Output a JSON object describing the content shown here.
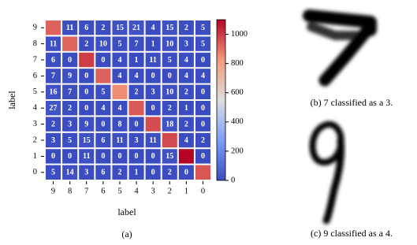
{
  "chart_data": {
    "type": "heatmap",
    "x_label": "label",
    "y_label": "label",
    "x_categories": [
      "9",
      "8",
      "7",
      "6",
      "5",
      "4",
      "3",
      "2",
      "1",
      "0"
    ],
    "y_categories": [
      "9",
      "8",
      "7",
      "6",
      "5",
      "4",
      "3",
      "2",
      "1",
      "0"
    ],
    "z": [
      [
        928,
        11,
        6,
        2,
        15,
        21,
        4,
        15,
        2,
        5
      ],
      [
        11,
        920,
        2,
        10,
        5,
        7,
        1,
        10,
        3,
        5
      ],
      [
        6,
        0,
        997,
        0,
        4,
        1,
        11,
        5,
        4,
        0
      ],
      [
        7,
        9,
        0,
        926,
        4,
        4,
        0,
        0,
        4,
        4
      ],
      [
        16,
        7,
        0,
        5,
        847,
        2,
        3,
        10,
        2,
        0
      ],
      [
        27,
        2,
        0,
        4,
        4,
        942,
        0,
        2,
        1,
        0
      ],
      [
        2,
        3,
        9,
        0,
        8,
        0,
        968,
        18,
        2,
        0
      ],
      [
        3,
        5,
        15,
        6,
        11,
        3,
        11,
        972,
        4,
        2
      ],
      [
        0,
        0,
        11,
        0,
        0,
        0,
        0,
        15,
        1109,
        0
      ],
      [
        5,
        14,
        3,
        6,
        2,
        1,
        0,
        2,
        0,
        947
      ]
    ],
    "cmap": "coolwarm",
    "diagonal_labels": false,
    "zlim": [
      0,
      1100
    ],
    "zticks": [
      0,
      200,
      400,
      600,
      800,
      1000
    ],
    "caption": "(a)"
  },
  "figures": [
    {
      "caption": "(b) 7 classified as a 3."
    },
    {
      "caption": "(c) 9 classified as a 4."
    }
  ]
}
